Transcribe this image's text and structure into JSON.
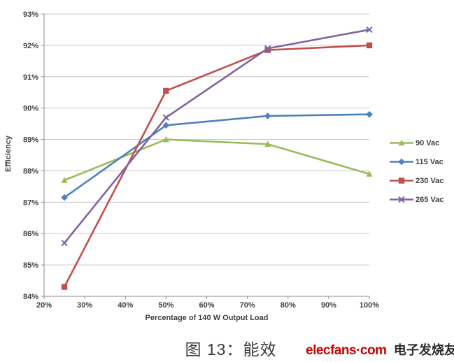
{
  "chart_data": {
    "type": "line",
    "x": [
      25,
      50,
      75,
      100
    ],
    "x_ticks": [
      "20%",
      "30%",
      "40%",
      "50%",
      "60%",
      "70%",
      "80%",
      "90%",
      "100%"
    ],
    "y_ticks": [
      "84%",
      "85%",
      "86%",
      "87%",
      "88%",
      "89%",
      "90%",
      "91%",
      "92%",
      "93%"
    ],
    "xlim": [
      20,
      100
    ],
    "ylim": [
      84,
      93
    ],
    "xlabel": "Percentage of 140 W Output Load",
    "ylabel": "Efficiency",
    "grid": "horizontal",
    "legend_position": "right",
    "series": [
      {
        "name": "90 Vac",
        "color": "#9BBB59",
        "marker": "triangle",
        "values": [
          87.7,
          89.0,
          88.85,
          87.9
        ]
      },
      {
        "name": "115 Vac",
        "color": "#4F81BD",
        "marker": "diamond",
        "values": [
          87.15,
          89.45,
          89.75,
          89.8
        ]
      },
      {
        "name": "230 Vac",
        "color": "#C0504D",
        "marker": "square",
        "values": [
          84.3,
          90.55,
          91.85,
          92.0
        ]
      },
      {
        "name": "265 Vac",
        "color": "#8064A2",
        "marker": "x",
        "values": [
          85.7,
          89.7,
          91.9,
          92.5
        ]
      }
    ],
    "style": {
      "grid_color": "#C9C9C9",
      "axis_color": "#8C8C8C",
      "text_color": "#3F3F3F"
    }
  },
  "caption": "图 13：能效",
  "logo": {
    "brand": "elecfans·com",
    "brand_color": "#CC0000",
    "suffix": "电子发烧友"
  }
}
